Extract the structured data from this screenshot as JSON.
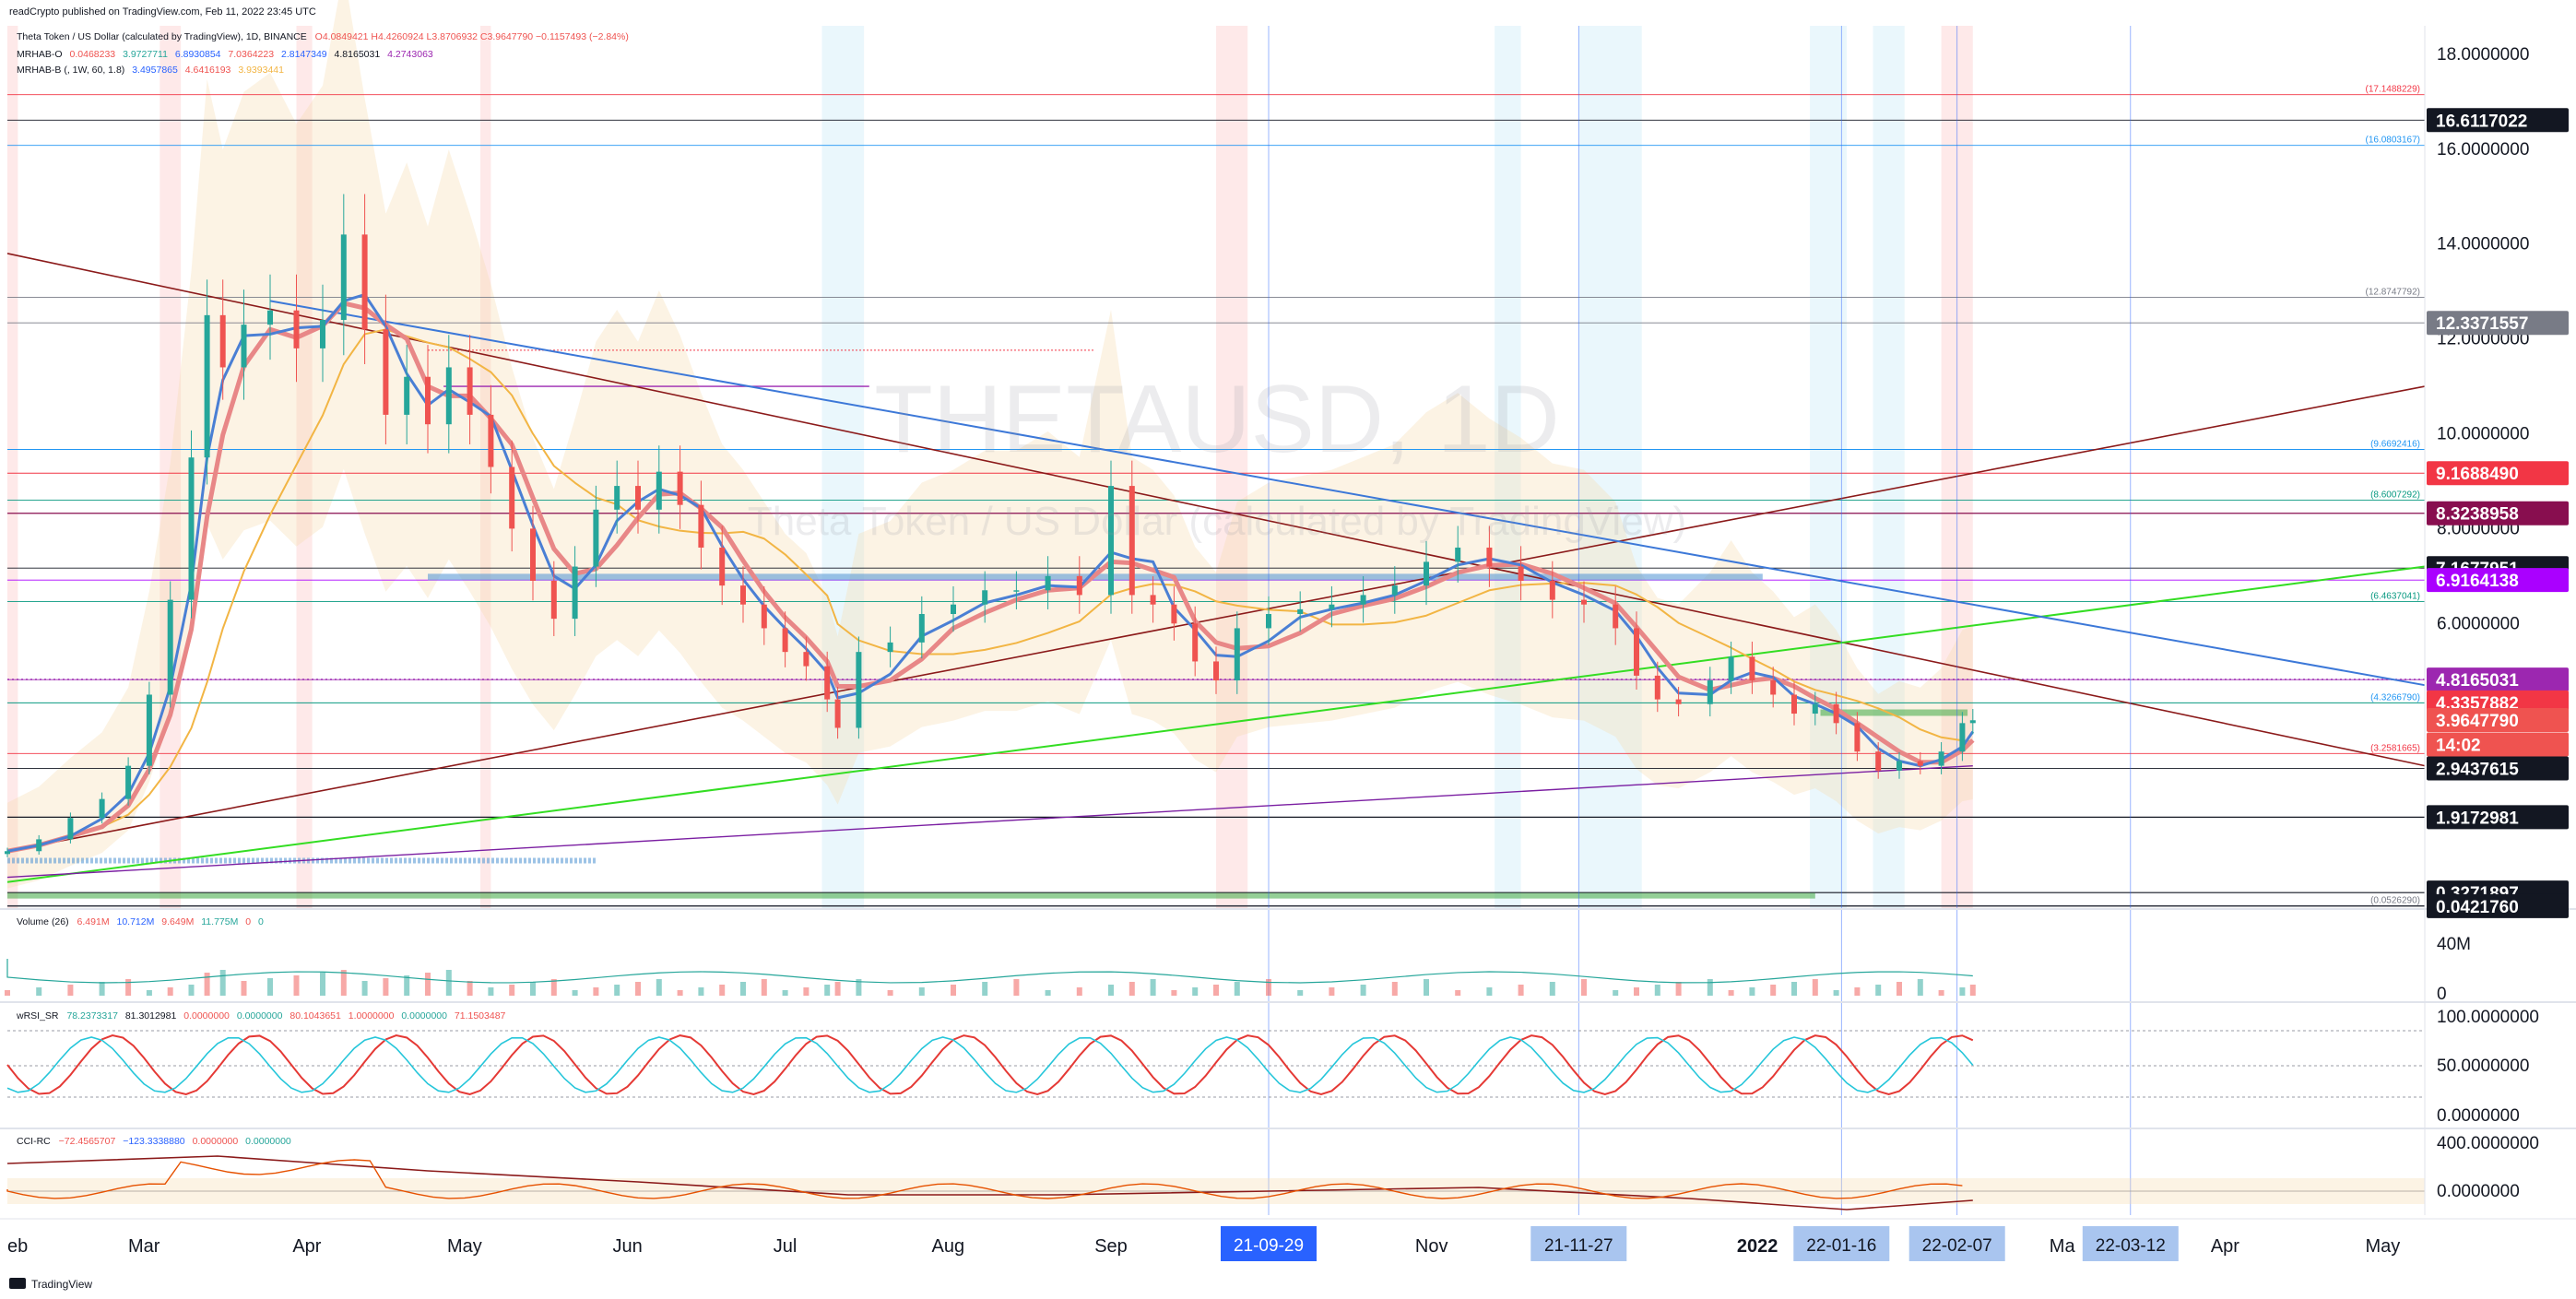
{
  "header": {
    "publish_line": "readCrypto published on TradingView.com, Feb 11, 2022 23:45 UTC",
    "symbol_line": "Theta Token / US Dollar (calculated by TradingView), 1D, BINANCE",
    "ohlc": "O4.0849421  H4.4260924  L3.8706932  C3.9647790  −0.1157493 (−2.84%)",
    "ind1_name": "MRHAB-O",
    "ind1_values": [
      "0.0468233",
      "3.9727711",
      "6.8930854",
      "7.0364223",
      "2.8147349",
      "4.8165031",
      "4.2743063"
    ],
    "ind2_name": "MRHAB-B (, 1W, 60, 1.8)",
    "ind2_values": [
      "3.4957865",
      "4.6416193",
      "3.9393441"
    ]
  },
  "watermark": {
    "big": "THETAUSD, 1D",
    "small": "Theta Token / US Dollar (calculated by TradingView)"
  },
  "colors": {
    "up": "#26a69a",
    "down": "#ef5350",
    "green_line": "#33dd22",
    "blue_line": "#3c78d8",
    "dark_red_line": "#8b1a1a",
    "purple_line": "#7b1fa2",
    "ma_blue": "#4a7fd4",
    "ma_orange": "#f2b544",
    "ma_red": "#e88787"
  },
  "chart_data": {
    "type": "candlestick",
    "symbol": "THETAUSD",
    "interval": "1D",
    "y_axis_ticks": [
      "18.0000000",
      "16.0000000",
      "14.0000000",
      "12.0000000",
      "10.0000000",
      "8.0000000",
      "6.0000000",
      "4.0000000",
      "0.0000000"
    ],
    "y_range": [
      0,
      18.6
    ],
    "x_axis_labels": [
      {
        "label": "eb",
        "t": 0
      },
      {
        "label": "Mar",
        "t": 26
      },
      {
        "label": "Apr",
        "t": 57
      },
      {
        "label": "May",
        "t": 87
      },
      {
        "label": "Jun",
        "t": 118
      },
      {
        "label": "Jul",
        "t": 148
      },
      {
        "label": "Aug",
        "t": 179
      },
      {
        "label": "Sep",
        "t": 210
      },
      {
        "label": "Nov",
        "t": 271
      },
      {
        "label": "2022",
        "t": 333
      },
      {
        "label": "Ma",
        "t": 391
      },
      {
        "label": "Apr",
        "t": 422
      },
      {
        "label": "May",
        "t": 452
      }
    ],
    "date_markers": [
      {
        "label": "21-09-29",
        "t": 240
      },
      {
        "label": "21-11-27",
        "t": 299
      },
      {
        "label": "22-01-16",
        "t": 349
      },
      {
        "label": "22-02-07",
        "t": 371
      },
      {
        "label": "22-03-12",
        "t": 404
      }
    ],
    "price_tags": [
      {
        "label": "16.6117022",
        "v": 16.6117022,
        "bg": "#131722",
        "fg": "#ffffff"
      },
      {
        "label": "12.3371557",
        "v": 12.3371557,
        "bg": "#787b86",
        "fg": "#ffffff"
      },
      {
        "label": "9.1688490",
        "v": 9.168849,
        "bg": "#f23645",
        "fg": "#ffffff"
      },
      {
        "label": "8.3238958",
        "v": 8.3238958,
        "bg": "#880e4f",
        "fg": "#ffffff"
      },
      {
        "label": "7.1677951",
        "v": 7.1677951,
        "bg": "#131722",
        "fg": "#ffffff"
      },
      {
        "label": "6.9164138",
        "v": 6.9164138,
        "bg": "#aa00ff",
        "fg": "#ffffff"
      },
      {
        "label": "4.8165031",
        "v": 4.8165031,
        "bg": "#9c27b0",
        "fg": "#ffffff"
      },
      {
        "label": "4.3357882",
        "v": 4.3357882,
        "bg": "#f23645",
        "fg": "#ffffff"
      },
      {
        "label": "3.9647790",
        "v": 3.964779,
        "bg": "#ef5350",
        "fg": "#ffffff"
      },
      {
        "label": "14:02",
        "v": 3.45,
        "bg": "#ef5350",
        "fg": "#ffffff"
      },
      {
        "label": "2.9437615",
        "v": 2.9437615,
        "bg": "#131722",
        "fg": "#ffffff"
      },
      {
        "label": "1.9172981",
        "v": 1.9172981,
        "bg": "#131722",
        "fg": "#ffffff"
      },
      {
        "label": "0.3271897",
        "v": 0.3271897,
        "bg": "#131722",
        "fg": "#ffffff"
      },
      {
        "label": "0.0421760",
        "v": 0.042176,
        "bg": "#131722",
        "fg": "#ffffff"
      }
    ],
    "fib_labels": [
      {
        "label": "(17.1488229)",
        "v": 17.1488229,
        "color": "#f23645"
      },
      {
        "label": "(16.0803167)",
        "v": 16.0803167,
        "color": "#2196f3"
      },
      {
        "label": "(12.8747792)",
        "v": 12.8747792,
        "color": "#787b86"
      },
      {
        "label": "(9.6692416)",
        "v": 9.6692416,
        "color": "#2196f3"
      },
      {
        "label": "(8.6007292)",
        "v": 8.6007292,
        "color": "#089981"
      },
      {
        "label": "(6.4637041)",
        "v": 6.4637041,
        "color": "#089981"
      },
      {
        "label": "(4.3266790)",
        "v": 4.326679,
        "color": "#2196f3"
      },
      {
        "label": "(3.2581665)",
        "v": 3.2581665,
        "color": "#f23645"
      },
      {
        "label": "(0.0526290)",
        "v": 0.052629,
        "color": "#787b86"
      }
    ],
    "close_series": [
      {
        "t": 0,
        "v": 1.2
      },
      {
        "t": 6,
        "v": 1.45
      },
      {
        "t": 12,
        "v": 1.9
      },
      {
        "t": 18,
        "v": 2.3
      },
      {
        "t": 23,
        "v": 3.0
      },
      {
        "t": 27,
        "v": 4.5
      },
      {
        "t": 31,
        "v": 6.5
      },
      {
        "t": 35,
        "v": 9.5
      },
      {
        "t": 38,
        "v": 12.5
      },
      {
        "t": 41,
        "v": 11.4
      },
      {
        "t": 45,
        "v": 12.3
      },
      {
        "t": 50,
        "v": 12.6
      },
      {
        "t": 55,
        "v": 11.8
      },
      {
        "t": 60,
        "v": 12.4
      },
      {
        "t": 64,
        "v": 14.2
      },
      {
        "t": 68,
        "v": 12.2
      },
      {
        "t": 72,
        "v": 10.4
      },
      {
        "t": 76,
        "v": 11.2
      },
      {
        "t": 80,
        "v": 10.2
      },
      {
        "t": 84,
        "v": 11.4
      },
      {
        "t": 88,
        "v": 10.4
      },
      {
        "t": 92,
        "v": 9.3
      },
      {
        "t": 96,
        "v": 8.0
      },
      {
        "t": 100,
        "v": 6.9
      },
      {
        "t": 104,
        "v": 6.1
      },
      {
        "t": 108,
        "v": 7.2
      },
      {
        "t": 112,
        "v": 8.4
      },
      {
        "t": 116,
        "v": 8.9
      },
      {
        "t": 120,
        "v": 8.4
      },
      {
        "t": 124,
        "v": 9.2
      },
      {
        "t": 128,
        "v": 8.5
      },
      {
        "t": 132,
        "v": 7.6
      },
      {
        "t": 136,
        "v": 6.8
      },
      {
        "t": 140,
        "v": 6.4
      },
      {
        "t": 144,
        "v": 5.9
      },
      {
        "t": 148,
        "v": 5.4
      },
      {
        "t": 152,
        "v": 5.1
      },
      {
        "t": 156,
        "v": 4.4
      },
      {
        "t": 158,
        "v": 3.8
      },
      {
        "t": 162,
        "v": 5.4
      },
      {
        "t": 168,
        "v": 5.6
      },
      {
        "t": 174,
        "v": 6.2
      },
      {
        "t": 180,
        "v": 6.4
      },
      {
        "t": 186,
        "v": 6.7
      },
      {
        "t": 192,
        "v": 6.7
      },
      {
        "t": 198,
        "v": 7.0
      },
      {
        "t": 204,
        "v": 6.6
      },
      {
        "t": 210,
        "v": 8.9
      },
      {
        "t": 214,
        "v": 6.6
      },
      {
        "t": 218,
        "v": 6.4
      },
      {
        "t": 222,
        "v": 6.0
      },
      {
        "t": 226,
        "v": 5.2
      },
      {
        "t": 230,
        "v": 4.8
      },
      {
        "t": 234,
        "v": 5.9
      },
      {
        "t": 240,
        "v": 6.2
      },
      {
        "t": 246,
        "v": 6.3
      },
      {
        "t": 252,
        "v": 6.4
      },
      {
        "t": 258,
        "v": 6.6
      },
      {
        "t": 264,
        "v": 6.8
      },
      {
        "t": 270,
        "v": 7.3
      },
      {
        "t": 276,
        "v": 7.6
      },
      {
        "t": 282,
        "v": 7.2
      },
      {
        "t": 288,
        "v": 6.9
      },
      {
        "t": 294,
        "v": 6.5
      },
      {
        "t": 300,
        "v": 6.4
      },
      {
        "t": 306,
        "v": 5.9
      },
      {
        "t": 310,
        "v": 4.9
      },
      {
        "t": 314,
        "v": 4.4
      },
      {
        "t": 318,
        "v": 4.3
      },
      {
        "t": 324,
        "v": 4.8
      },
      {
        "t": 328,
        "v": 5.3
      },
      {
        "t": 332,
        "v": 4.8
      },
      {
        "t": 336,
        "v": 4.5
      },
      {
        "t": 340,
        "v": 4.1
      },
      {
        "t": 344,
        "v": 4.3
      },
      {
        "t": 348,
        "v": 3.9
      },
      {
        "t": 352,
        "v": 3.3
      },
      {
        "t": 356,
        "v": 2.9
      },
      {
        "t": 360,
        "v": 3.1
      },
      {
        "t": 364,
        "v": 3.0
      },
      {
        "t": 368,
        "v": 3.3
      },
      {
        "t": 372,
        "v": 3.9
      },
      {
        "t": 374,
        "v": 3.96
      }
    ],
    "x_range": [
      0,
      460
    ],
    "volume_axis_ticks": [
      "40M",
      "0"
    ],
    "rsi_axis_ticks": [
      "100.0000000",
      "50.0000000",
      "0.0000000"
    ],
    "cci_axis_ticks": [
      "400.0000000",
      "0.0000000"
    ]
  },
  "panels": {
    "volume": {
      "name": "Volume (26)",
      "values": [
        "6.491M",
        "10.712M",
        "9.649M",
        "11.775M",
        "0",
        "0"
      ]
    },
    "rsi": {
      "name": "wRSI_SR",
      "values": [
        "78.2373317",
        "81.3012981",
        "0.0000000",
        "0.0000000",
        "80.1043651",
        "1.0000000",
        "0.0000000",
        "71.1503487"
      ]
    },
    "cci": {
      "name": "CCI-RC",
      "values": [
        "−72.4565707",
        "−123.3338880",
        "0.0000000",
        "0.0000000"
      ]
    }
  },
  "footer": {
    "brand": "TradingView"
  }
}
